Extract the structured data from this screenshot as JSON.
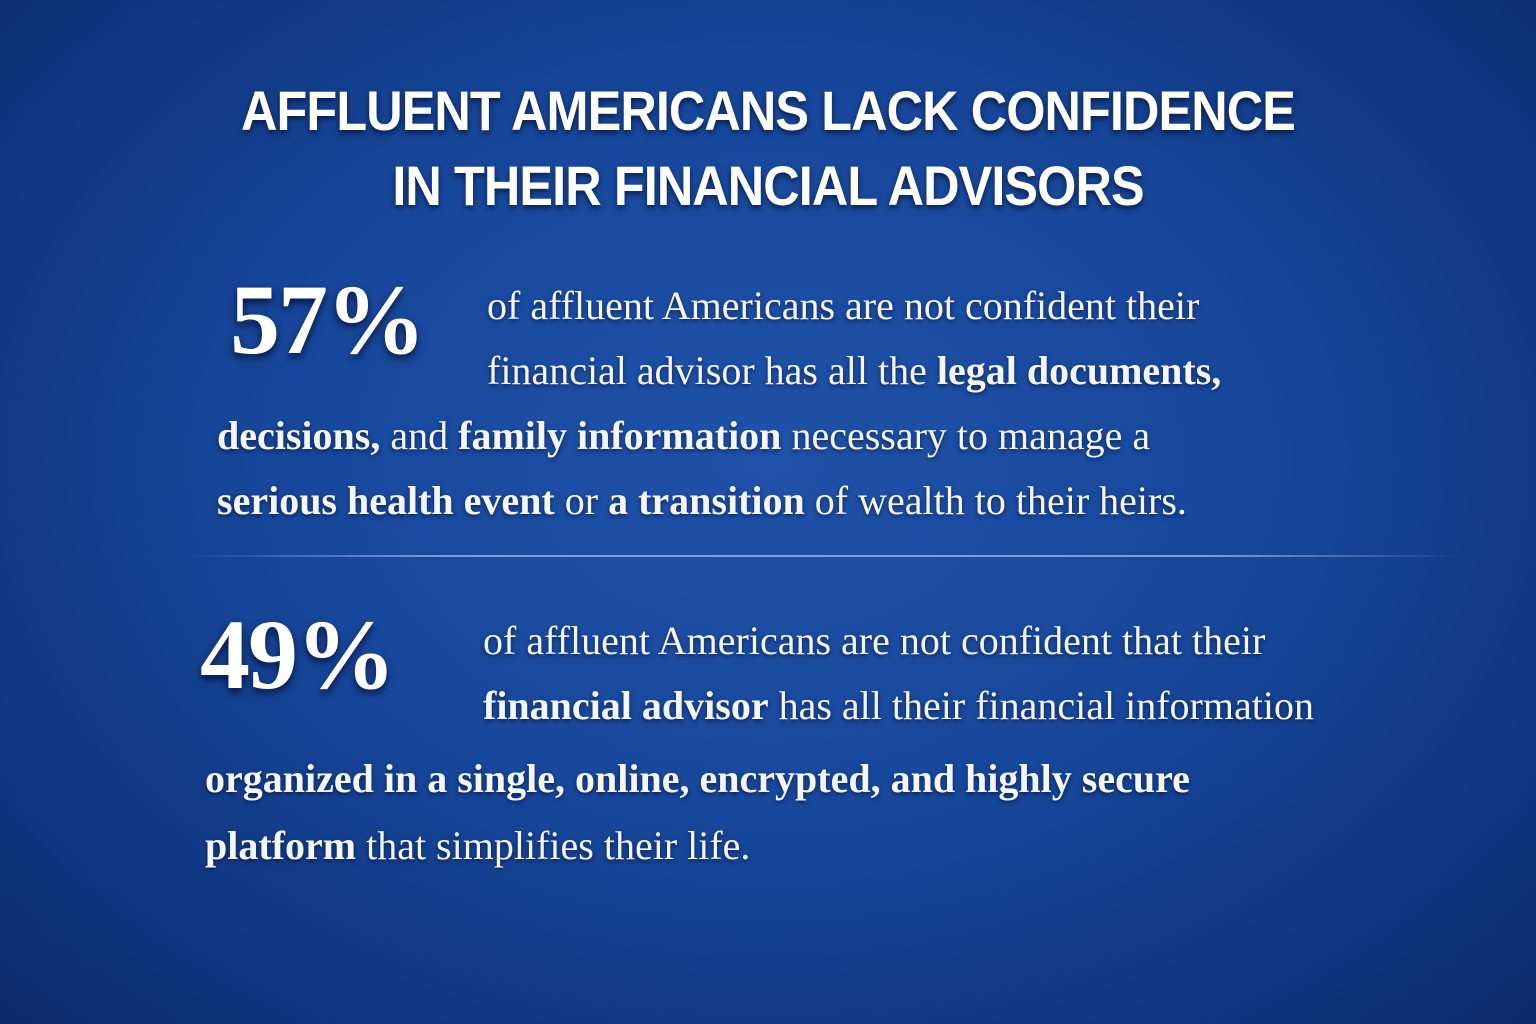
{
  "title": {
    "line1": "AFFLUENT AMERICANS LACK CONFIDENCE",
    "line2": "IN THEIR FINANCIAL ADVISORS"
  },
  "stat1": {
    "value": "57%",
    "lines": [
      [
        {
          "t": "of affluent Americans are not confident their"
        }
      ],
      [
        {
          "t": "financial advisor has all the "
        },
        {
          "t": "legal documents,",
          "b": true
        }
      ],
      [
        {
          "t": "decisions,",
          "b": true
        },
        {
          "t": " and "
        },
        {
          "t": "family information",
          "b": true
        },
        {
          "t": " necessary to manage a"
        }
      ],
      [
        {
          "t": "serious health event",
          "b": true
        },
        {
          "t": " or "
        },
        {
          "t": "a transition",
          "b": true
        },
        {
          "t": " of wealth to their heirs."
        }
      ]
    ]
  },
  "stat2": {
    "value": "49%",
    "lines": [
      [
        {
          "t": "of affluent Americans are not confident that their"
        }
      ],
      [
        {
          "t": "financial advisor",
          "b": true
        },
        {
          "t": " has all their financial information"
        }
      ],
      [
        {
          "t": "organized in a single, online, encrypted, and highly secure",
          "b": true
        }
      ],
      [
        {
          "t": "platform",
          "b": true
        },
        {
          "t": " that simplifies their life."
        }
      ]
    ]
  }
}
